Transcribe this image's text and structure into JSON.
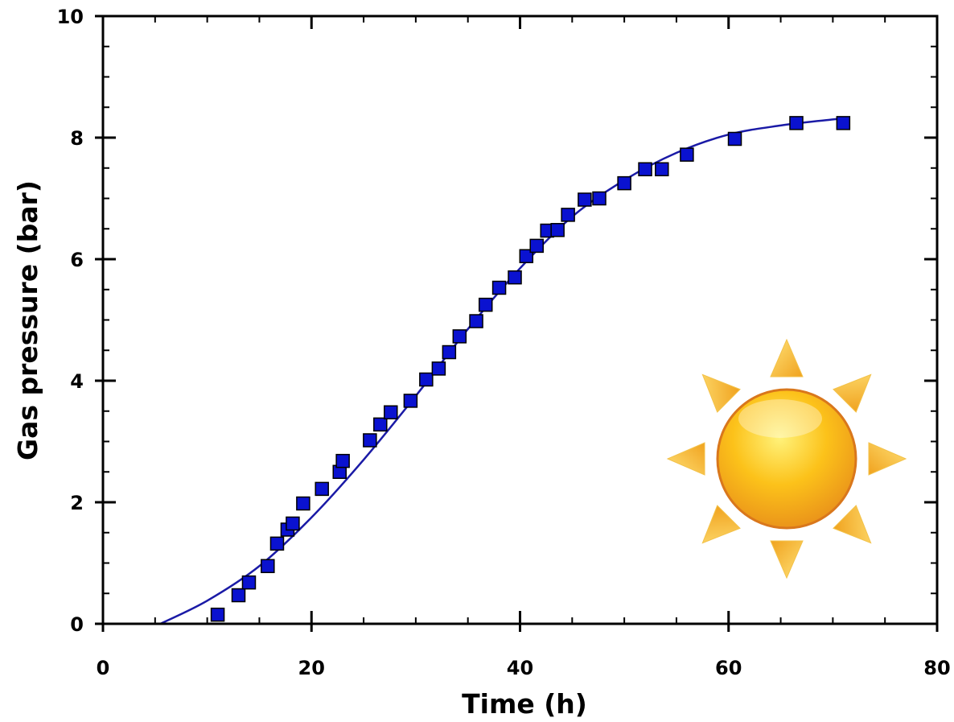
{
  "chart_data": {
    "type": "scatter",
    "title": "",
    "xlabel": "Time (h)",
    "ylabel": "Gas pressure (bar)",
    "xlim": [
      0,
      80
    ],
    "ylim": [
      0,
      10
    ],
    "x_ticks": [
      0,
      20,
      40,
      60,
      80
    ],
    "y_ticks": [
      0,
      2,
      4,
      6,
      8,
      10
    ],
    "x_minor_step": 5,
    "y_minor_step": 0.5,
    "grid": false,
    "legend": "none",
    "series": [
      {
        "kind": "points",
        "marker": "square",
        "color": "#0a12d0",
        "x": [
          11,
          13,
          14,
          15.8,
          16.7,
          17.7,
          18.2,
          19.2,
          21,
          22.7,
          23,
          25.6,
          26.6,
          27.6,
          29.5,
          31,
          32.2,
          33.2,
          34.2,
          35.8,
          36.7,
          38,
          39.5,
          40.6,
          41.6,
          42.6,
          43.6,
          44.6,
          46.2,
          47.6,
          50,
          52,
          53.6,
          56,
          60.6,
          66.5,
          71
        ],
        "y": [
          0.15,
          0.47,
          0.68,
          0.95,
          1.32,
          1.55,
          1.65,
          1.98,
          2.22,
          2.5,
          2.68,
          3.02,
          3.28,
          3.48,
          3.67,
          4.02,
          4.2,
          4.47,
          4.73,
          4.98,
          5.25,
          5.53,
          5.7,
          6.05,
          6.22,
          6.47,
          6.48,
          6.73,
          6.98,
          7.0,
          7.25,
          7.48,
          7.48,
          7.72,
          7.98,
          8.24,
          8.24
        ]
      },
      {
        "kind": "fit-line",
        "color": "#1a1aa6",
        "x": [
          5.5,
          10,
          15,
          20,
          25,
          30,
          35,
          40,
          45,
          50,
          55,
          60,
          65,
          70,
          71.5
        ],
        "y": [
          0.0,
          0.38,
          0.95,
          1.75,
          2.7,
          3.75,
          4.85,
          5.85,
          6.7,
          7.3,
          7.75,
          8.05,
          8.2,
          8.3,
          8.32
        ]
      }
    ]
  },
  "decoration": {
    "icon": "sun-icon"
  }
}
